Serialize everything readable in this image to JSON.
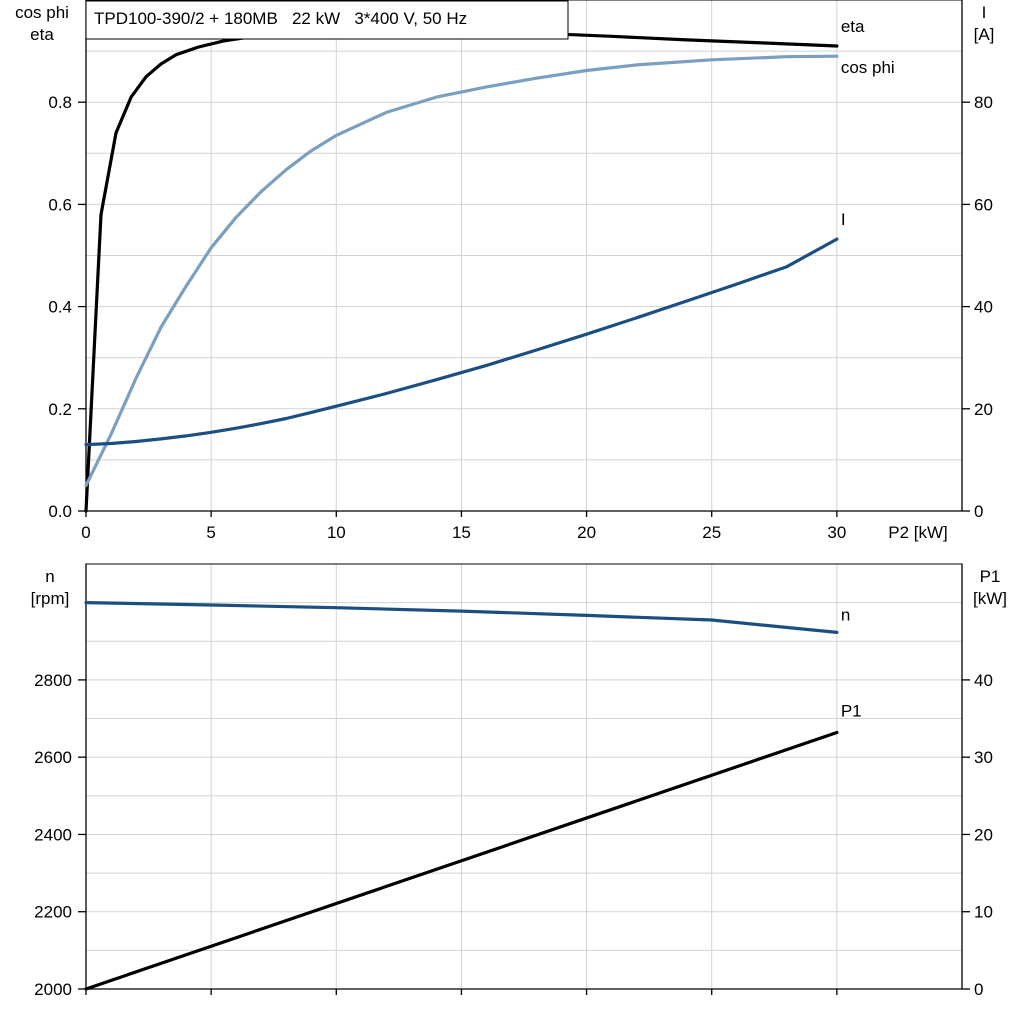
{
  "chart_data": [
    {
      "type": "line",
      "title": "TPD100-390/2 + 180MB   22 kW   3*400 V, 50 Hz",
      "xlabel": "P2 [kW]",
      "xlim": [
        0,
        35
      ],
      "xticks": [
        0,
        5,
        10,
        15,
        20,
        25,
        30
      ],
      "ylabel_left": [
        "cos phi",
        "eta"
      ],
      "ylim_left": [
        0,
        1.0
      ],
      "yticks_left": [
        0.0,
        0.2,
        0.4,
        0.6,
        0.8
      ],
      "ylabel_right": [
        "I",
        "[A]"
      ],
      "ylim_right": [
        0,
        100
      ],
      "yticks_right": [
        0,
        20,
        40,
        60,
        80
      ],
      "grid": true,
      "series": [
        {
          "name": "eta",
          "axis": "left",
          "color": "#000000",
          "x": [
            0,
            0.6,
            1.2,
            1.8,
            2.4,
            3,
            3.6,
            4.5,
            5.5,
            7,
            9,
            11,
            13,
            15,
            18,
            21,
            24,
            27,
            30
          ],
          "y": [
            0.0,
            0.58,
            0.74,
            0.81,
            0.85,
            0.875,
            0.893,
            0.908,
            0.92,
            0.931,
            0.938,
            0.941,
            0.941,
            0.939,
            0.935,
            0.929,
            0.922,
            0.916,
            0.91
          ]
        },
        {
          "name": "cos phi",
          "axis": "left",
          "color": "#7b9fbf",
          "x": [
            0,
            1,
            2,
            3,
            4,
            5,
            6,
            7,
            8,
            9,
            10,
            12,
            14,
            16,
            18,
            20,
            22,
            25,
            28,
            30
          ],
          "y": [
            0.05,
            0.15,
            0.26,
            0.36,
            0.44,
            0.515,
            0.575,
            0.625,
            0.668,
            0.705,
            0.735,
            0.78,
            0.81,
            0.83,
            0.847,
            0.862,
            0.873,
            0.883,
            0.889,
            0.89
          ]
        },
        {
          "name": "I",
          "axis": "right",
          "color": "#1b4f82",
          "x": [
            0,
            1,
            2,
            3,
            4,
            5,
            6,
            7,
            8,
            9,
            10,
            12,
            14,
            16,
            18,
            20,
            22,
            24,
            26,
            28,
            30
          ],
          "y": [
            13,
            13.2,
            13.6,
            14.1,
            14.7,
            15.4,
            16.2,
            17.1,
            18.1,
            19.3,
            20.5,
            23,
            25.7,
            28.5,
            31.5,
            34.6,
            37.8,
            41.1,
            44.4,
            47.8,
            53.2
          ]
        }
      ]
    },
    {
      "type": "line",
      "xlim": [
        0,
        35
      ],
      "xticks": [
        0,
        5,
        10,
        15,
        20,
        25,
        30
      ],
      "ylabel_left": [
        "n",
        "[rpm]"
      ],
      "ylim_left": [
        2000,
        3100
      ],
      "yticks_left": [
        2000,
        2200,
        2400,
        2600,
        2800
      ],
      "ylabel_right": [
        "P1",
        "[kW]"
      ],
      "ylim_right": [
        0,
        55
      ],
      "yticks_right": [
        0,
        10,
        20,
        30,
        40
      ],
      "grid": true,
      "series": [
        {
          "name": "n",
          "axis": "left",
          "color": "#1b4f82",
          "x": [
            0,
            5,
            10,
            15,
            20,
            25,
            30
          ],
          "y": [
            3000,
            2994,
            2987,
            2978,
            2967,
            2955,
            2923
          ]
        },
        {
          "name": "P1",
          "axis": "right",
          "color": "#000000",
          "x": [
            0,
            30
          ],
          "y": [
            0,
            33.2
          ]
        }
      ]
    }
  ]
}
